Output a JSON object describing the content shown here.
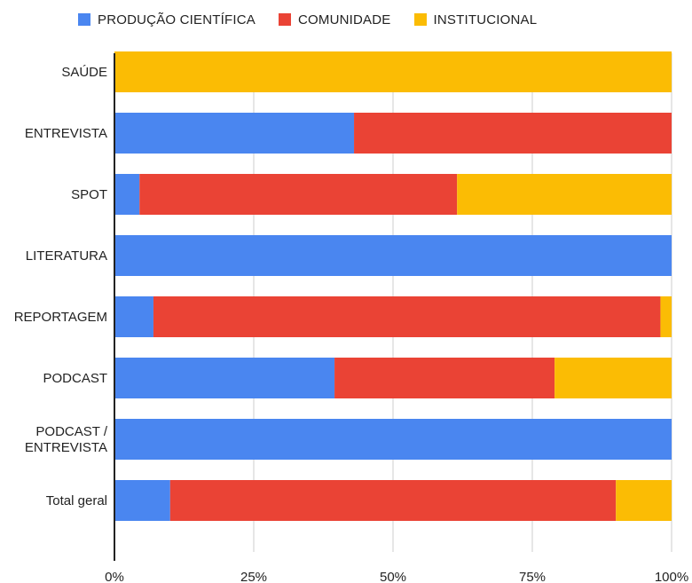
{
  "legend": [
    {
      "label": "PRODUÇÃO CIENTÍFICA",
      "color": "#4a86f0"
    },
    {
      "label": "COMUNIDADE",
      "color": "#ea4335"
    },
    {
      "label": "INSTITUCIONAL",
      "color": "#fbbc04"
    }
  ],
  "chart_data": {
    "type": "bar",
    "orientation": "horizontal",
    "stacked": "percent",
    "categories": [
      "SAÚDE",
      "ENTREVISTA",
      "SPOT",
      "LITERATURA",
      "REPORTAGEM",
      "PODCAST",
      "PODCAST / ENTREVISTA",
      "Total geral"
    ],
    "series": [
      {
        "name": "PRODUÇÃO CIENTÍFICA",
        "color": "#4a86f0",
        "values": [
          0,
          43,
          4.5,
          100,
          7,
          39.5,
          100,
          10
        ]
      },
      {
        "name": "COMUNIDADE",
        "color": "#ea4335",
        "values": [
          0,
          57,
          57,
          0,
          91,
          39.5,
          0,
          80
        ]
      },
      {
        "name": "INSTITUCIONAL",
        "color": "#fbbc04",
        "values": [
          100,
          0,
          38.5,
          0,
          2,
          21,
          0,
          10
        ]
      }
    ],
    "x_ticks": [
      "0%",
      "25%",
      "50%",
      "75%",
      "100%"
    ],
    "xlim": [
      0,
      100
    ],
    "grid": true,
    "legend_position": "top"
  }
}
